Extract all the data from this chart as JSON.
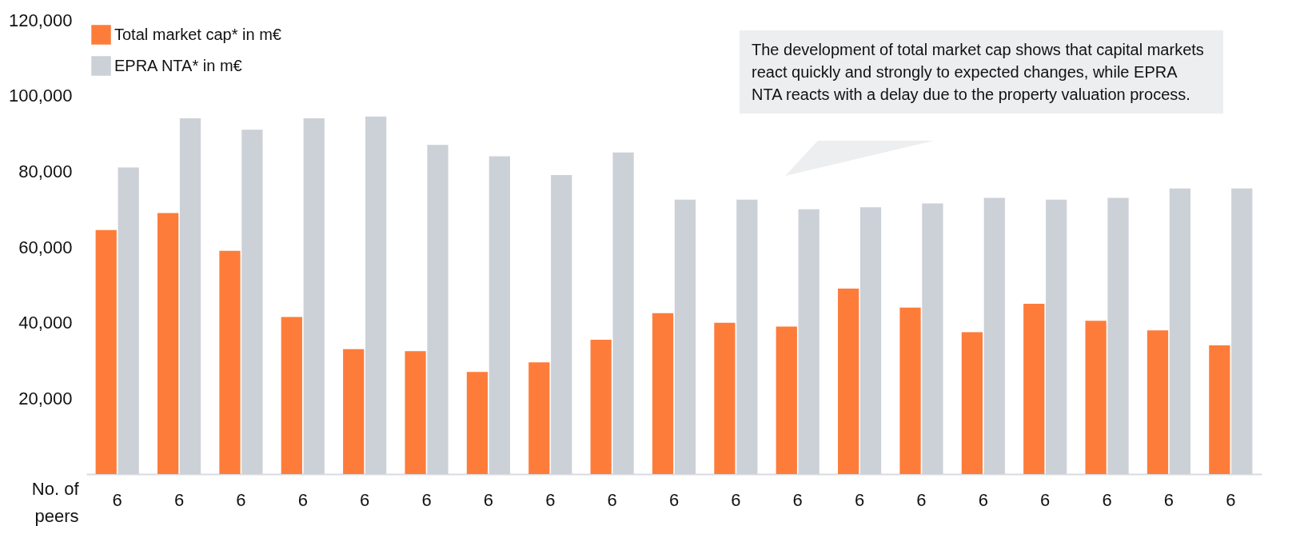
{
  "chart_data": {
    "type": "bar",
    "xlabel": "No. of peers",
    "categories": [
      "6",
      "6",
      "6",
      "6",
      "6",
      "6",
      "6",
      "6",
      "6",
      "6",
      "6",
      "6",
      "6",
      "6",
      "6",
      "6",
      "6",
      "6",
      "6"
    ],
    "series": [
      {
        "name": "Total market cap* in m€",
        "color": "#fe7c3a",
        "values": [
          64500,
          69000,
          59000,
          41500,
          33000,
          32500,
          27000,
          29500,
          35500,
          42500,
          40000,
          39000,
          49000,
          44000,
          37500,
          45000,
          40500,
          38000,
          34000
        ]
      },
      {
        "name": "EPRA NTA* in m€",
        "color": "#ccd0d7",
        "values": [
          81000,
          94000,
          91000,
          94000,
          94500,
          87000,
          84000,
          79000,
          85000,
          72500,
          72500,
          70000,
          70500,
          71500,
          73000,
          72500,
          73000,
          75500,
          75500
        ]
      }
    ],
    "ylim": [
      0,
      120000
    ],
    "yticks": [
      {
        "value": 20000,
        "label": "20,000"
      },
      {
        "value": 40000,
        "label": "40,000"
      },
      {
        "value": 60000,
        "label": "60,000"
      },
      {
        "value": 80000,
        "label": "80,000"
      },
      {
        "value": 100000,
        "label": "100,000"
      },
      {
        "value": 120000,
        "label": "120,000"
      }
    ],
    "grid": false,
    "legend": "top left",
    "annotations": [
      "The development of total market cap shows that capital markets react quickly and strongly to expected changes, while EPRA NTA reacts with a delay due to the property valuation process."
    ]
  }
}
